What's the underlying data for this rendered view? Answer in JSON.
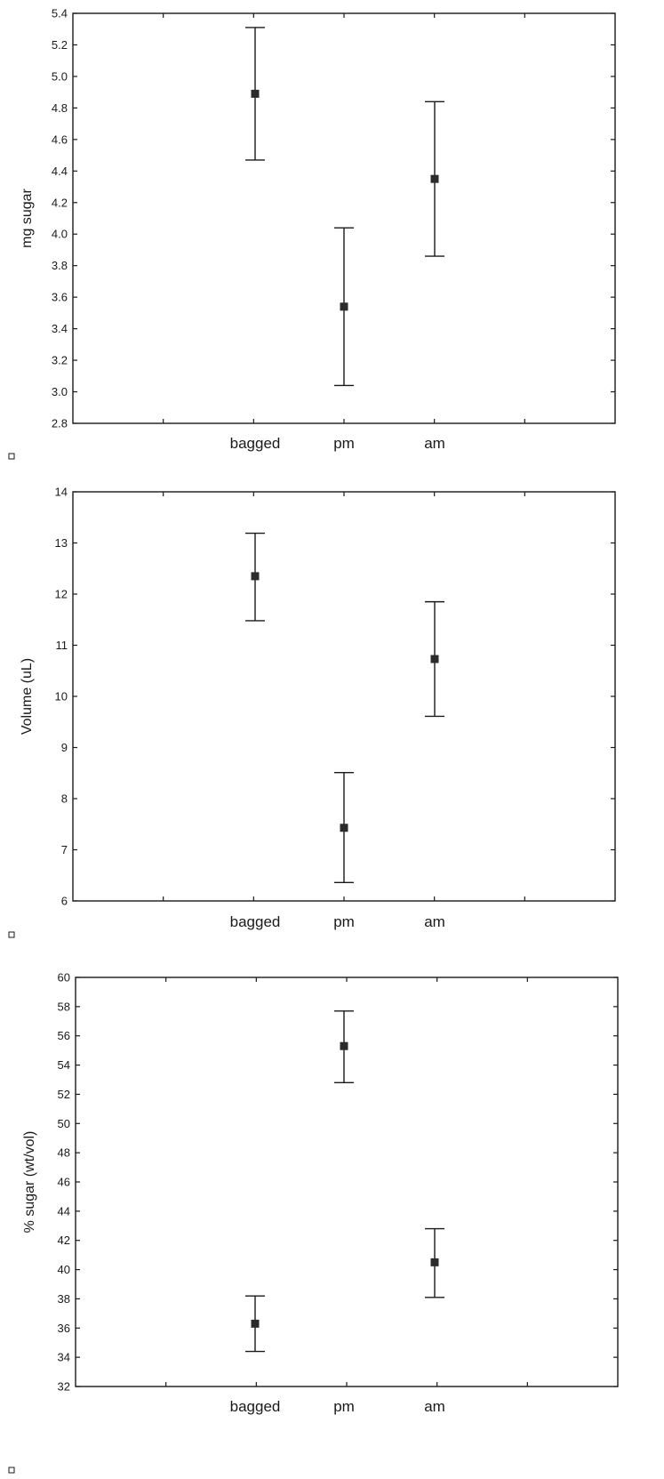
{
  "chart_data": [
    {
      "type": "scatter",
      "title": "",
      "xlabel": "",
      "ylabel": "mg sugar",
      "categories": [
        "bagged",
        "pm",
        "am"
      ],
      "values": [
        4.89,
        3.54,
        4.35
      ],
      "error_low": [
        4.47,
        3.04,
        3.86
      ],
      "error_high": [
        5.31,
        4.04,
        4.84
      ],
      "ylim": [
        2.8,
        5.4
      ],
      "yticks": [
        "2.8",
        "3.0",
        "3.2",
        "3.4",
        "3.6",
        "3.8",
        "4.0",
        "4.2",
        "4.4",
        "4.6",
        "4.8",
        "5.0",
        "5.2",
        "5.4"
      ],
      "grid": false,
      "color": "#2b2b2b"
    },
    {
      "type": "scatter",
      "title": "",
      "xlabel": "",
      "ylabel": "Volume (uL)",
      "categories": [
        "bagged",
        "pm",
        "am"
      ],
      "values": [
        12.35,
        7.43,
        10.73
      ],
      "error_low": [
        11.48,
        6.36,
        9.61
      ],
      "error_high": [
        13.19,
        8.51,
        11.85
      ],
      "ylim": [
        6,
        14
      ],
      "yticks": [
        "6",
        "7",
        "8",
        "9",
        "10",
        "11",
        "12",
        "13",
        "14"
      ],
      "grid": false,
      "color": "#2b2b2b"
    },
    {
      "type": "scatter",
      "title": "",
      "xlabel": "",
      "ylabel": "% sugar (wt/vol)",
      "categories": [
        "bagged",
        "pm",
        "am"
      ],
      "values": [
        36.3,
        55.3,
        40.5
      ],
      "error_low": [
        34.4,
        52.8,
        38.1
      ],
      "error_high": [
        38.2,
        57.7,
        42.8
      ],
      "ylim": [
        32,
        60
      ],
      "yticks": [
        "32",
        "34",
        "36",
        "38",
        "40",
        "42",
        "44",
        "46",
        "48",
        "50",
        "52",
        "54",
        "56",
        "58",
        "60"
      ],
      "grid": false,
      "color": "#2b2b2b"
    }
  ]
}
